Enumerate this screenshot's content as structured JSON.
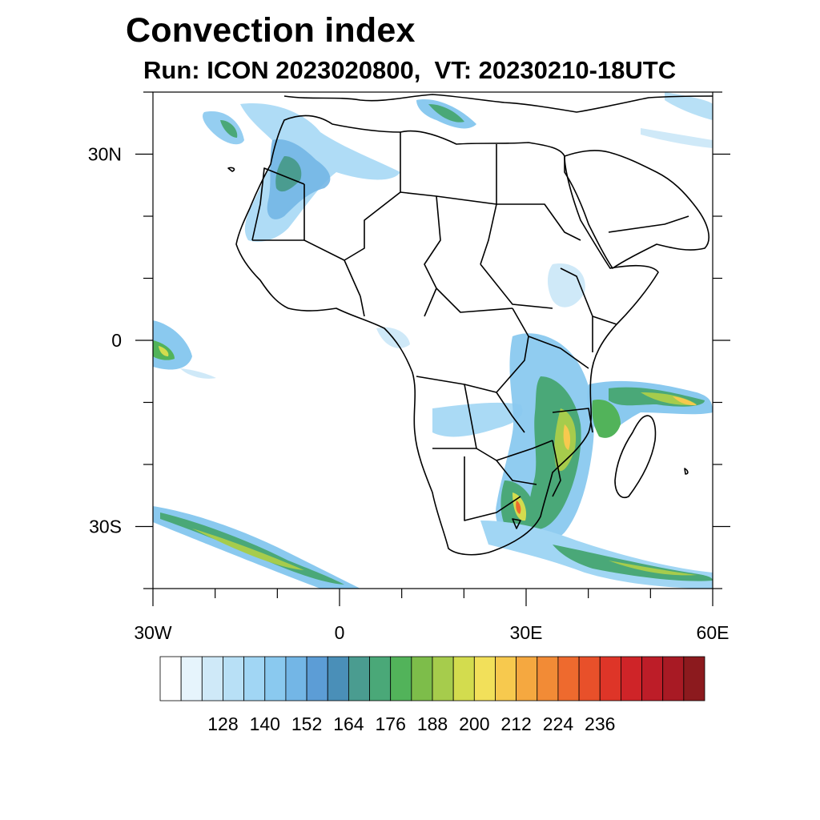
{
  "title": "Convection index",
  "subtitle": "Run: ICON 2023020800,  VT: 20230210-18UTC",
  "map": {
    "lat_ticks": [
      {
        "label": "30N",
        "lat": 30
      },
      {
        "label": "0",
        "lat": 0
      },
      {
        "label": "30S",
        "lat": -30
      }
    ],
    "lon_ticks": [
      {
        "label": "30W",
        "lon": -30
      },
      {
        "label": "0",
        "lon": 0
      },
      {
        "label": "30E",
        "lon": 30
      },
      {
        "label": "60E",
        "lon": 60
      }
    ],
    "extent": {
      "lon": [
        -30,
        60
      ],
      "lat": [
        -40,
        40
      ]
    }
  },
  "colorbar": {
    "colors": [
      "#ffffff",
      "#e6f4fc",
      "#cfe9f8",
      "#b8e0f6",
      "#a1d6f4",
      "#8ac9ef",
      "#73b6e6",
      "#5c9dd6",
      "#4a8fb8",
      "#4a9c90",
      "#4aa878",
      "#52b35a",
      "#7dbd4a",
      "#a6cc4c",
      "#d3dc4e",
      "#f2e05a",
      "#f7c94e",
      "#f5a840",
      "#f28b36",
      "#ee6a2e",
      "#e8502a",
      "#de3528",
      "#cf2428",
      "#bd1d28",
      "#a81a24",
      "#8c1a1e"
    ],
    "tick_labels": [
      "128",
      "140",
      "152",
      "164",
      "176",
      "188",
      "200",
      "212",
      "224",
      "236"
    ]
  }
}
